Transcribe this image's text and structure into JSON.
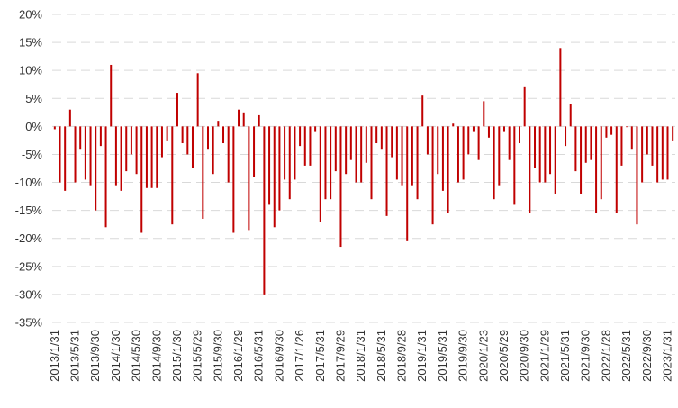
{
  "chart_data": {
    "type": "bar",
    "title": "",
    "xlabel": "",
    "ylabel": "",
    "ylim": [
      -35,
      20
    ],
    "y_ticks": [
      20,
      15,
      10,
      5,
      0,
      -5,
      -10,
      -15,
      -20,
      -25,
      -30,
      -35
    ],
    "y_tick_suffix": "%",
    "grid": "horizontal dashed",
    "legend": "none",
    "bar_color": "#c00000",
    "x_tick_labels": [
      "2013/1/31",
      "2013/5/31",
      "2013/9/30",
      "2014/1/30",
      "2014/5/30",
      "2014/9/30",
      "2015/1/30",
      "2015/5/29",
      "2015/9/30",
      "2016/1/29",
      "2016/5/31",
      "2016/9/30",
      "2017/1/26",
      "2017/5/31",
      "2017/9/29",
      "2018/1/31",
      "2018/5/31",
      "2018/9/28",
      "2019/1/31",
      "2019/5/31",
      "2019/9/30",
      "2020/1/23",
      "2020/5/29",
      "2020/9/30",
      "2021/1/29",
      "2021/5/31",
      "2021/9/30",
      "2022/1/28",
      "2022/5/31",
      "2022/9/30",
      "2023/1/31"
    ],
    "categories_every_nth_label": 4,
    "values": [
      -0.5,
      -10,
      -11.5,
      3,
      -10,
      -4,
      -9.5,
      -10.5,
      -15,
      -3.5,
      -18,
      11,
      -10.5,
      -11.5,
      -8,
      -5,
      -8.5,
      -19,
      -11,
      -11,
      -11,
      -5.5,
      -2.5,
      -17.5,
      6,
      -3,
      -5,
      -7.5,
      9.5,
      -16.5,
      -4,
      -8.5,
      1,
      -3,
      -10,
      -19,
      3,
      2.5,
      -18.5,
      -9,
      2,
      -30,
      -14,
      -18,
      -15,
      -9.5,
      -13,
      -9.5,
      -3.5,
      -7,
      -7,
      -1,
      -17,
      -13,
      -13,
      -8,
      -21.5,
      -8.5,
      -6,
      -10,
      -10,
      -6.5,
      -13,
      -3,
      -4,
      -16,
      -5.5,
      -9.5,
      -10.5,
      -20.5,
      -10.5,
      -13,
      5.5,
      -5,
      -17.5,
      -8.5,
      -11.5,
      -15.5,
      0.5,
      -10,
      -9.5,
      -5,
      -1,
      -6,
      4.5,
      -2,
      -13,
      -10.5,
      -1,
      -6,
      -14,
      -3,
      7,
      -15.5,
      -7.5,
      -10,
      -10,
      -8.5,
      -12,
      14,
      -3.5,
      4,
      -8,
      -12,
      -6.5,
      -6,
      -15.5,
      -13,
      -2,
      -1.5,
      -15.5,
      -7,
      0,
      -4,
      -17.5,
      -10,
      -5,
      -7,
      -10,
      -9.5,
      -9.5,
      -2.5
    ]
  }
}
